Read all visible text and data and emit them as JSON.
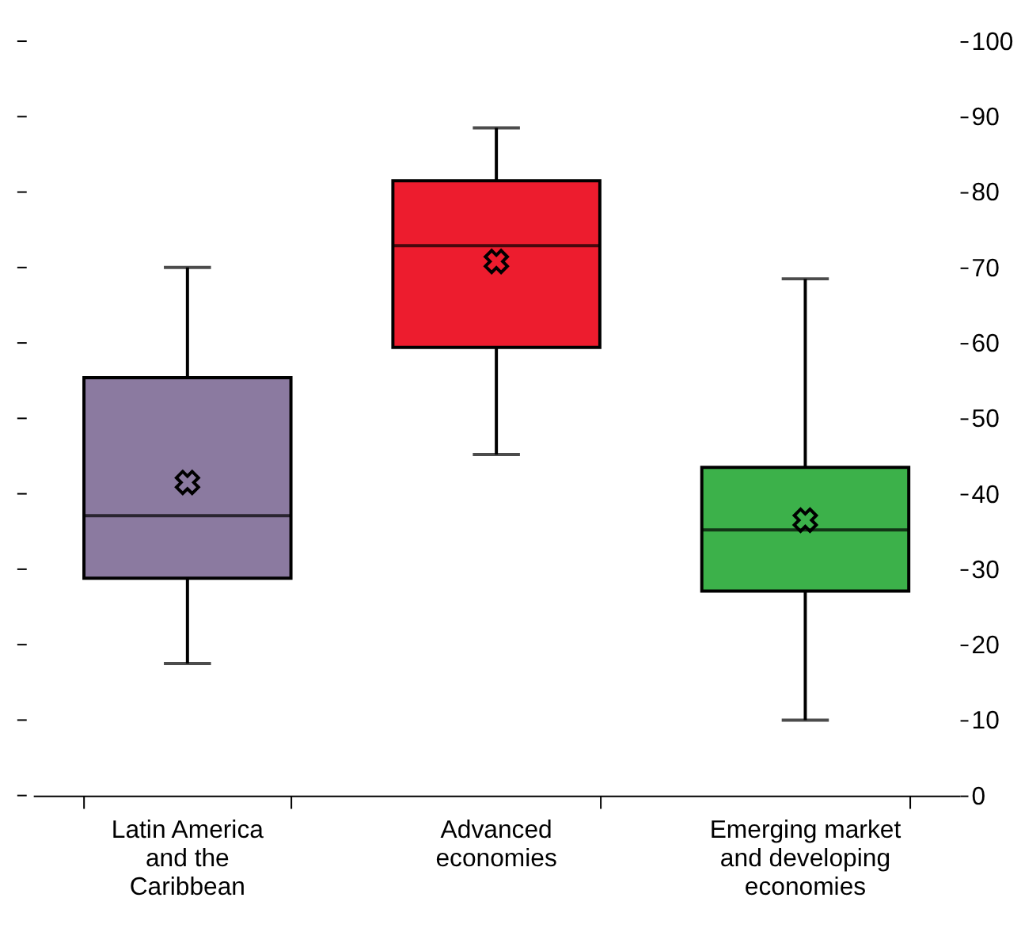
{
  "chart_data": {
    "type": "box",
    "categories": [
      "Latin America and the Caribbean",
      "Advanced economies",
      "Emerging market and developing economies"
    ],
    "boxes": [
      {
        "low": 17.5,
        "q1": 28.8,
        "median": 37.1,
        "q3": 55.4,
        "high": 70,
        "mean": 41.5
      },
      {
        "low": 45.2,
        "q1": 59.4,
        "median": 72.9,
        "q3": 81.5,
        "high": 88.5,
        "mean": 70.8
      },
      {
        "low": 10,
        "q1": 27.1,
        "median": 35.2,
        "q3": 43.5,
        "high": 68.5,
        "mean": 36.5
      }
    ],
    "colors": [
      "#8b7aa0",
      "#ed1c2e",
      "#3cb14a"
    ],
    "ylim": [
      0,
      100
    ],
    "yticks": [
      0,
      10,
      20,
      30,
      40,
      50,
      60,
      70,
      80,
      90,
      100
    ],
    "grid": false
  }
}
